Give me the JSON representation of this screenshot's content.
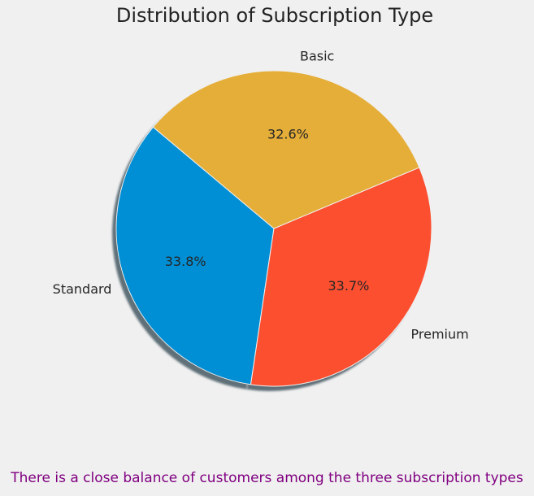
{
  "chart_data": {
    "type": "pie",
    "title": "Distribution of Subscription Type",
    "categories": [
      "Standard",
      "Premium",
      "Basic"
    ],
    "values": [
      33.8,
      33.7,
      32.6
    ],
    "value_labels": [
      "33.8%",
      "33.7%",
      "32.6%"
    ],
    "colors": [
      "#008fd5",
      "#fc4f30",
      "#e5ae38"
    ],
    "shadow": true,
    "annotation": "There is a close balance of customers among the three subscription types",
    "annotation_color": "#800080"
  }
}
